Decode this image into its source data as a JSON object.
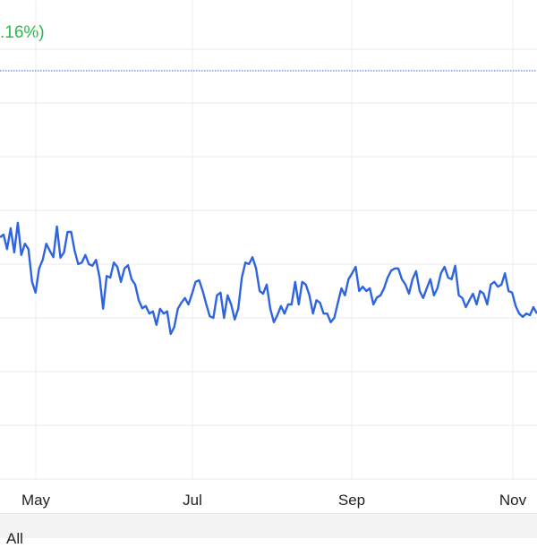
{
  "header": {
    "change_text": ".16%)"
  },
  "footer": {
    "range_label": "All"
  },
  "chart_data": {
    "type": "line",
    "title": "",
    "xlabel": "",
    "ylabel": "",
    "x_tick_labels": [
      "May",
      "Jul",
      "Sep",
      "Nov"
    ],
    "ylim": [
      0,
      8.92
    ],
    "grid": true,
    "reference_line": {
      "value": 7.6,
      "style": "dotted",
      "color": "#2a5bd7"
    },
    "line_color": "#2f64e0",
    "change_color": "#2db84a",
    "series": [
      {
        "values": [
          4.5,
          4.55,
          4.28,
          4.67,
          4.22,
          4.77,
          4.17,
          4.38,
          4.28,
          3.67,
          3.47,
          3.92,
          4.08,
          4.38,
          4.25,
          4.13,
          4.7,
          4.12,
          4.22,
          4.6,
          4.6,
          4.25,
          4.0,
          4.03,
          4.17,
          4.0,
          3.97,
          4.08,
          3.75,
          3.17,
          3.78,
          3.75,
          4.03,
          3.95,
          3.67,
          3.92,
          3.98,
          3.72,
          3.62,
          3.33,
          3.18,
          3.22,
          3.08,
          3.12,
          2.87,
          3.17,
          3.08,
          3.12,
          2.7,
          2.83,
          3.17,
          3.28,
          3.37,
          3.25,
          3.45,
          3.67,
          3.7,
          3.5,
          3.25,
          3.03,
          3.0,
          3.42,
          3.47,
          3.0,
          3.42,
          3.25,
          2.97,
          3.17,
          3.75,
          4.03,
          4.0,
          4.13,
          3.92,
          3.5,
          3.45,
          3.62,
          3.17,
          2.92,
          3.05,
          3.22,
          3.08,
          3.25,
          3.25,
          3.67,
          3.25,
          3.67,
          3.62,
          3.42,
          3.08,
          3.33,
          3.28,
          3.08,
          3.08,
          2.92,
          3.0,
          3.28,
          3.55,
          3.42,
          3.72,
          3.83,
          3.95,
          3.5,
          3.58,
          3.5,
          3.55,
          3.25,
          3.38,
          3.42,
          3.55,
          3.75,
          3.88,
          3.92,
          3.92,
          3.72,
          3.62,
          3.45,
          3.72,
          3.87,
          3.5,
          3.37,
          3.55,
          3.72,
          3.42,
          3.55,
          3.83,
          3.95,
          3.75,
          3.72,
          3.97,
          3.42,
          3.37,
          3.2,
          3.33,
          3.45,
          3.25,
          3.5,
          3.45,
          3.25,
          3.62,
          3.67,
          3.58,
          3.62,
          3.83,
          3.5,
          3.47,
          3.22,
          3.08,
          3.02,
          3.08,
          3.05,
          3.2,
          3.08
        ]
      }
    ]
  }
}
